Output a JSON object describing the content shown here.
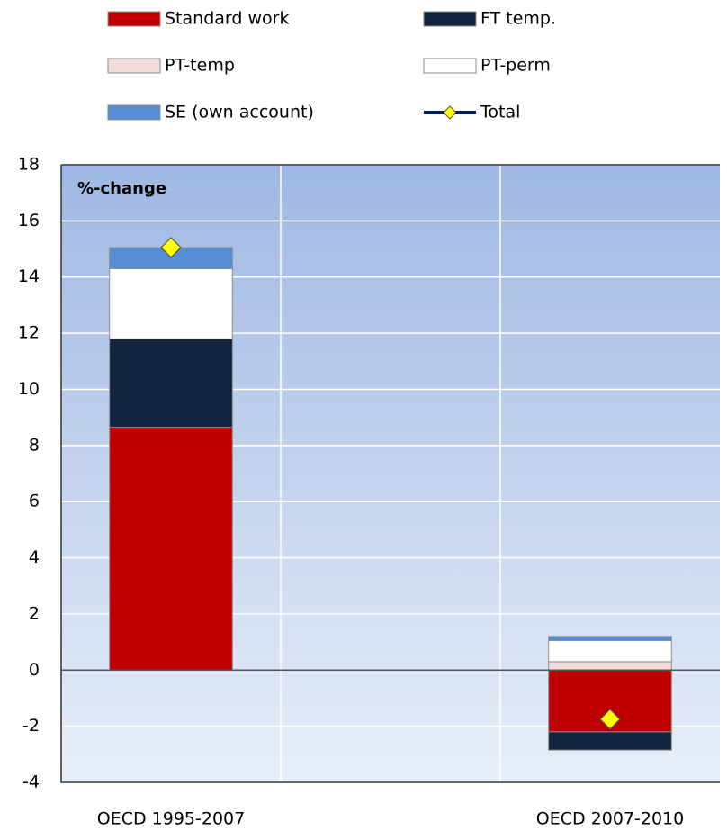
{
  "chart_data": {
    "type": "stacked-bar",
    "annotation": "%-change",
    "categories": [
      "OECD 1995-2007",
      null,
      "OECD 2007-2010"
    ],
    "series": [
      {
        "name": "Standard work",
        "color": "#c00000",
        "values": [
          8.65,
          null,
          -2.2
        ]
      },
      {
        "name": "FT temp.",
        "color": "#12243f",
        "values": [
          3.15,
          null,
          -0.65
        ]
      },
      {
        "name": "PT-temp",
        "color": "#f2dcdb",
        "values": [
          0,
          null,
          0.3
        ]
      },
      {
        "name": "PT-perm",
        "color": "#ffffff",
        "values": [
          2.5,
          null,
          0.75
        ]
      },
      {
        "name": "SE (own account)",
        "color": "#558ed5",
        "values": [
          0.75,
          null,
          0.15
        ]
      },
      {
        "name": "Total",
        "color": "#002060",
        "marker_color": "#ffff00",
        "marker": "diamond",
        "values": [
          15.05,
          null,
          -1.75
        ]
      }
    ],
    "ylim": [
      -4,
      18
    ],
    "yticks": [
      -4,
      -2,
      0,
      2,
      4,
      6,
      8,
      10,
      12,
      14,
      16,
      18
    ],
    "grid": true
  }
}
